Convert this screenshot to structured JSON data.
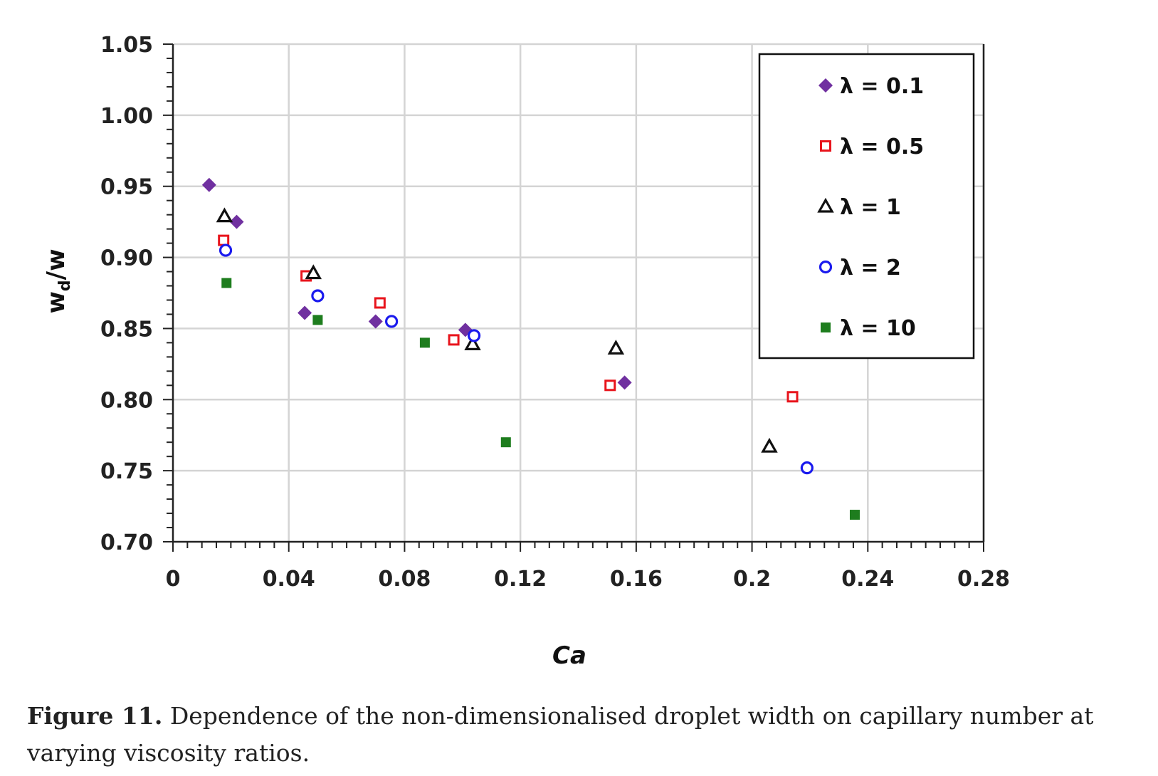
{
  "chart_data": {
    "type": "scatter",
    "xlabel": "Ca",
    "ylabel_main": "w",
    "ylabel_sub": "d",
    "ylabel_tail": "/w",
    "xlim": [
      0,
      0.28
    ],
    "ylim": [
      0.7,
      1.05
    ],
    "x_ticks": [
      0,
      0.04,
      0.08,
      0.12,
      0.16,
      0.2,
      0.24,
      0.28
    ],
    "x_tick_labels": [
      "0",
      "0.04",
      "0.08",
      "0.12",
      "0.16",
      "0.2",
      "0.24",
      "0.28"
    ],
    "y_ticks": [
      0.7,
      0.75,
      0.8,
      0.85,
      0.9,
      0.95,
      1.0,
      1.05
    ],
    "y_tick_labels": [
      "0.70",
      "0.75",
      "0.80",
      "0.85",
      "0.90",
      "0.95",
      "1.00",
      "1.05"
    ],
    "grid": true,
    "legend_position": "top-right",
    "series": [
      {
        "name": "λ = 0.1",
        "marker": "diamond",
        "color": "#7030a0",
        "points": [
          [
            0.0125,
            0.951
          ],
          [
            0.022,
            0.925
          ],
          [
            0.0455,
            0.861
          ],
          [
            0.07,
            0.855
          ],
          [
            0.101,
            0.849
          ],
          [
            0.156,
            0.812
          ]
        ]
      },
      {
        "name": "λ = 0.5",
        "marker": "open-square",
        "color": "#e8141c",
        "points": [
          [
            0.0175,
            0.912
          ],
          [
            0.046,
            0.887
          ],
          [
            0.0715,
            0.868
          ],
          [
            0.097,
            0.842
          ],
          [
            0.151,
            0.81
          ],
          [
            0.214,
            0.802
          ]
        ]
      },
      {
        "name": "λ = 1",
        "marker": "open-triangle",
        "color": "#111111",
        "points": [
          [
            0.0178,
            0.929
          ],
          [
            0.0485,
            0.889
          ],
          [
            0.1035,
            0.839
          ],
          [
            0.153,
            0.836
          ],
          [
            0.206,
            0.767
          ]
        ]
      },
      {
        "name": "λ = 2",
        "marker": "open-circle",
        "color": "#1a1aee",
        "points": [
          [
            0.0182,
            0.905
          ],
          [
            0.05,
            0.873
          ],
          [
            0.0755,
            0.855
          ],
          [
            0.104,
            0.845
          ],
          [
            0.219,
            0.752
          ]
        ]
      },
      {
        "name": "λ = 10",
        "marker": "filled-square",
        "color": "#1e7d1e",
        "points": [
          [
            0.0185,
            0.882
          ],
          [
            0.05,
            0.856
          ],
          [
            0.087,
            0.84
          ],
          [
            0.115,
            0.77
          ],
          [
            0.2355,
            0.719
          ]
        ]
      }
    ]
  },
  "caption": {
    "label": "Figure 11.",
    "text": " Dependence of the non-dimensionalised droplet width on capillary number at varying viscosity ratios."
  }
}
